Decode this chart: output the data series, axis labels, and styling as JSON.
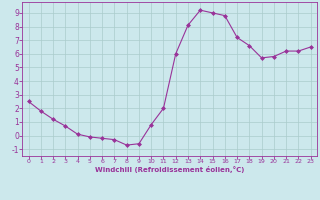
{
  "x": [
    0,
    1,
    2,
    3,
    4,
    5,
    6,
    7,
    8,
    9,
    10,
    11,
    12,
    13,
    14,
    15,
    16,
    17,
    18,
    19,
    20,
    21,
    22,
    23
  ],
  "y": [
    2.5,
    1.8,
    1.2,
    0.7,
    0.1,
    -0.1,
    -0.2,
    -0.3,
    -0.7,
    -0.6,
    0.8,
    2.0,
    6.0,
    8.1,
    9.2,
    9.0,
    8.8,
    7.2,
    6.6,
    5.7,
    5.8,
    6.2,
    6.2,
    6.5
  ],
  "line_color": "#993399",
  "marker": "D",
  "markersize": 2.0,
  "linewidth": 0.8,
  "background_color": "#cce8ec",
  "grid_color": "#aacccc",
  "xlabel": "Windchill (Refroidissement éolien,°C)",
  "tick_color": "#993399",
  "xlim": [
    -0.5,
    23.5
  ],
  "ylim": [
    -1.5,
    9.8
  ],
  "yticks": [
    -1,
    0,
    1,
    2,
    3,
    4,
    5,
    6,
    7,
    8,
    9
  ],
  "xticks": [
    0,
    1,
    2,
    3,
    4,
    5,
    6,
    7,
    8,
    9,
    10,
    11,
    12,
    13,
    14,
    15,
    16,
    17,
    18,
    19,
    20,
    21,
    22,
    23
  ]
}
